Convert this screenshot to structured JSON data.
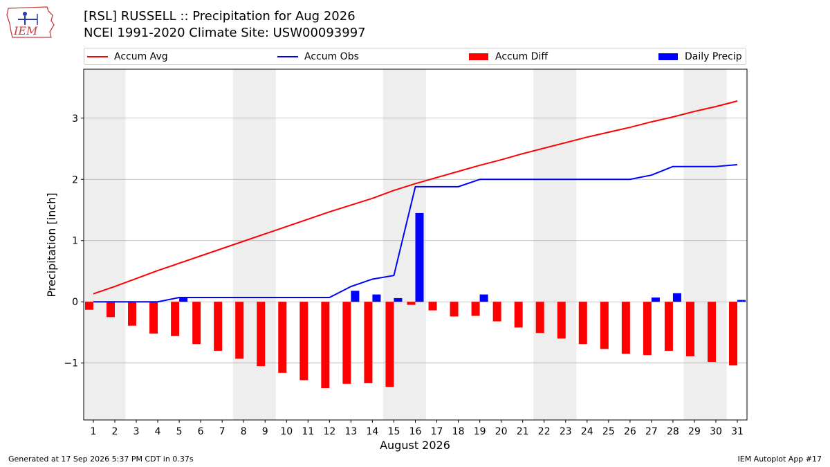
{
  "header": {
    "title_line1": "[RSL] RUSSELL :: Precipitation for Aug 2026",
    "title_line2": "NCEI 1991-2020 Climate Site: USW00093997",
    "logo_text": "IEM"
  },
  "legend": {
    "items": [
      {
        "label": "Accum Avg",
        "kind": "line",
        "color": "#ff0000"
      },
      {
        "label": "Accum Obs",
        "kind": "line",
        "color": "#0000ff"
      },
      {
        "label": "Accum Diff",
        "kind": "bar",
        "color": "#ff0000"
      },
      {
        "label": "Daily Precip",
        "kind": "bar",
        "color": "#0000ff"
      }
    ]
  },
  "chart_data": {
    "type": "bar",
    "title": "[RSL] RUSSELL :: Precipitation for Aug 2026",
    "subtitle": "NCEI 1991-2020 Climate Site: USW00093997",
    "xlabel": "August 2026",
    "ylabel": "Precipitation [inch]",
    "x": [
      1,
      2,
      3,
      4,
      5,
      6,
      7,
      8,
      9,
      10,
      11,
      12,
      13,
      14,
      15,
      16,
      17,
      18,
      19,
      20,
      21,
      22,
      23,
      24,
      25,
      26,
      27,
      28,
      29,
      30,
      31
    ],
    "ylim": [
      -1.93,
      3.8
    ],
    "yticks": [
      -1,
      0,
      1,
      2,
      3
    ],
    "ytick_labels": [
      "−1",
      "0",
      "1",
      "2",
      "3"
    ],
    "weekend_shading_days": [
      [
        1,
        2
      ],
      [
        8,
        9
      ],
      [
        15,
        16
      ],
      [
        22,
        23
      ],
      [
        29,
        30
      ]
    ],
    "grid": "horizontal",
    "legend_position": "top",
    "series": [
      {
        "name": "Accum Avg",
        "kind": "line",
        "color": "#ff0000",
        "values": [
          0.13,
          0.25,
          0.38,
          0.51,
          0.63,
          0.75,
          0.87,
          0.99,
          1.11,
          1.23,
          1.35,
          1.47,
          1.58,
          1.69,
          1.82,
          1.93,
          2.03,
          2.13,
          2.23,
          2.32,
          2.42,
          2.51,
          2.6,
          2.69,
          2.77,
          2.85,
          2.94,
          3.02,
          3.11,
          3.19,
          3.28
        ]
      },
      {
        "name": "Accum Obs",
        "kind": "line",
        "color": "#0000ff",
        "values": [
          0.0,
          0.0,
          0.0,
          0.0,
          0.07,
          0.07,
          0.07,
          0.07,
          0.07,
          0.07,
          0.07,
          0.07,
          0.25,
          0.37,
          0.43,
          1.88,
          1.88,
          1.88,
          2.0,
          2.0,
          2.0,
          2.0,
          2.0,
          2.0,
          2.0,
          2.0,
          2.07,
          2.21,
          2.21,
          2.21,
          2.24
        ]
      },
      {
        "name": "Accum Diff",
        "kind": "bar",
        "color": "#ff0000",
        "values": [
          -0.13,
          -0.25,
          -0.39,
          -0.52,
          -0.56,
          -0.69,
          -0.8,
          -0.93,
          -1.05,
          -1.16,
          -1.28,
          -1.41,
          -1.34,
          -1.33,
          -1.39,
          -0.05,
          -0.14,
          -0.24,
          -0.23,
          -0.32,
          -0.42,
          -0.51,
          -0.6,
          -0.69,
          -0.77,
          -0.85,
          -0.87,
          -0.8,
          -0.89,
          -0.98,
          -1.04
        ]
      },
      {
        "name": "Daily Precip",
        "kind": "bar",
        "color": "#0000ff",
        "values": [
          0,
          0,
          0,
          0,
          0.07,
          0,
          0,
          0,
          0,
          0,
          0,
          0,
          0.18,
          0.12,
          0.06,
          1.45,
          0,
          0,
          0.12,
          0,
          0,
          0,
          0,
          0,
          0,
          0,
          0.07,
          0.14,
          0,
          0,
          0.03
        ]
      }
    ]
  },
  "footer": {
    "left": "Generated at 17 Sep 2026 5:37 PM CDT in 0.37s",
    "right": "IEM Autoplot App #17"
  }
}
